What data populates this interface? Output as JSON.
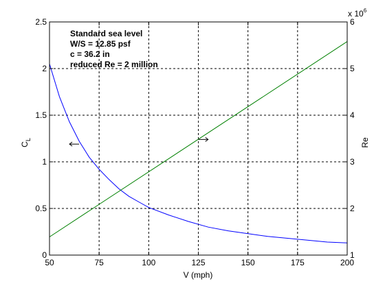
{
  "chart_data": {
    "type": "line",
    "title": "",
    "xlabel": "V (mph)",
    "ylabel_left": "C_L",
    "ylabel_right": "Re",
    "right_axis_multiplier": "x 10^6",
    "xlim": [
      50,
      200
    ],
    "ylim_left": [
      0,
      2.5
    ],
    "ylim_right": [
      1,
      6
    ],
    "xticks": [
      50,
      75,
      100,
      125,
      150,
      175,
      200
    ],
    "yticks_left": [
      0,
      0.5,
      1,
      1.5,
      2,
      2.5
    ],
    "yticks_right": [
      1,
      2,
      3,
      4,
      5,
      6
    ],
    "grid": true,
    "annotation_lines": [
      "Standard sea level",
      "W/S = 12.85 psf",
      "c = 36.2 in",
      "reduced Re = 2 million"
    ],
    "series": [
      {
        "axis": "left",
        "color": "#0000ff",
        "x": [
          50,
          55,
          60,
          65,
          70,
          75,
          80,
          85,
          90,
          95,
          100,
          110,
          120,
          130,
          140,
          150,
          160,
          170,
          180,
          190,
          200
        ],
        "y": [
          2.05,
          1.7,
          1.43,
          1.22,
          1.05,
          0.92,
          0.81,
          0.71,
          0.63,
          0.57,
          0.51,
          0.43,
          0.36,
          0.3,
          0.26,
          0.23,
          0.2,
          0.18,
          0.16,
          0.14,
          0.13
        ]
      },
      {
        "axis": "right",
        "color": "#008000",
        "x": [
          50,
          200
        ],
        "y": [
          1.39,
          5.58
        ]
      }
    ],
    "arrows": [
      {
        "direction": "left",
        "x": 62.5,
        "y_left": 1.19
      },
      {
        "direction": "right",
        "x": 127.5,
        "y_left": 1.24
      }
    ]
  }
}
